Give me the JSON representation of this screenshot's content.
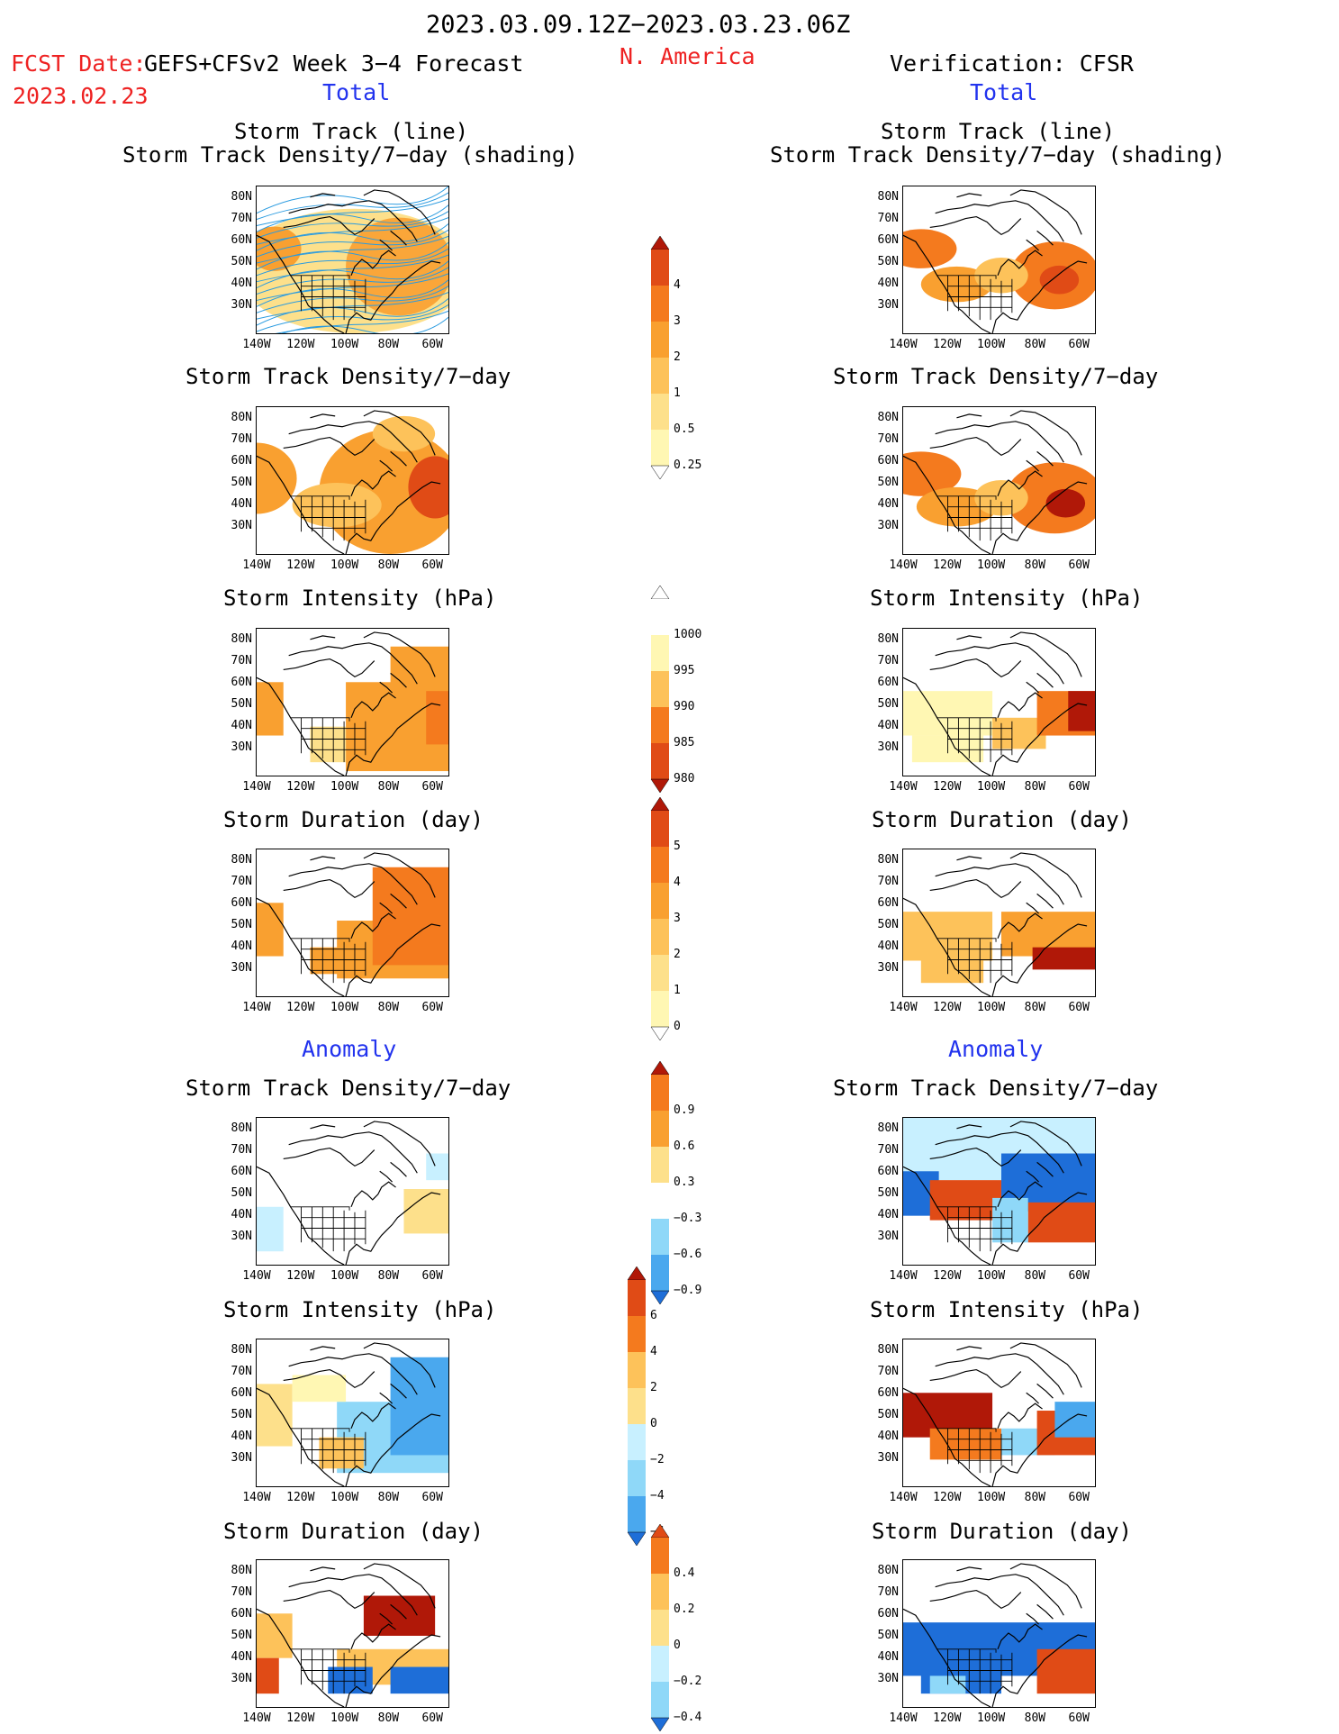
{
  "header": {
    "period": "2023.03.09.12Z−2023.03.23.06Z",
    "region": "N. America",
    "fcst_label": "FCST Date:",
    "fcst_model": "GEFS+CFSv2 Week 3−4 Forecast",
    "fcst_date": "2023.02.23",
    "verification": "Verification: CFSR"
  },
  "sections": {
    "total_left": "Total",
    "total_right": "Total",
    "anomaly_left": "Anomaly",
    "anomaly_right": "Anomaly"
  },
  "panel_titles": {
    "track_line": "Storm Track (line)",
    "track_shading": "Storm Track Density/7−day (shading)",
    "density": "Storm Track Density/7−day",
    "intensity": "Storm Intensity (hPa)",
    "duration": "Storm Duration (day)"
  },
  "axes": {
    "lat_ticks": [
      "80N",
      "70N",
      "60N",
      "50N",
      "40N",
      "30N"
    ],
    "lon_ticks": [
      "140W",
      "120W",
      "100W",
      "80W",
      "60W"
    ]
  },
  "colorbars": {
    "density_total": [
      "4",
      "3",
      "2",
      "1",
      "0.5",
      "0.25"
    ],
    "intensity_total": [
      "1000",
      "995",
      "990",
      "985",
      "980"
    ],
    "duration_total": [
      "5",
      "4",
      "3",
      "2",
      "1",
      "0"
    ],
    "density_anom": [
      "0.9",
      "0.6",
      "0.3",
      "−0.3",
      "−0.6",
      "−0.9"
    ],
    "intensity_anom": [
      "6",
      "4",
      "2",
      "0",
      "−2",
      "−4",
      "−6"
    ],
    "duration_anom": [
      "0.4",
      "0.2",
      "0",
      "−0.2",
      "−0.4"
    ]
  },
  "colors": {
    "warm": [
      "#fff7b3",
      "#fde08b",
      "#fdc25a",
      "#f9a030",
      "#f47a1e",
      "#e04b16",
      "#b01808"
    ],
    "cool": [
      "#c8f0ff",
      "#8fd8f8",
      "#4aa8ee",
      "#1e6ed8"
    ],
    "track_line": "#2a9be0"
  }
}
